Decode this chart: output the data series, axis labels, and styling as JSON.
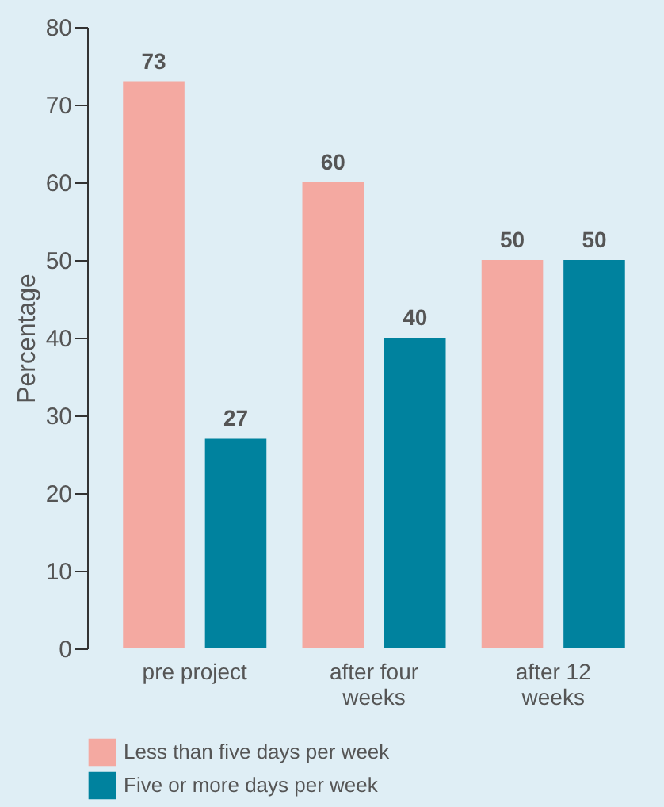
{
  "chart_data": {
    "type": "bar",
    "ylabel": "Percentage",
    "categories": [
      "pre project",
      "after four weeks",
      "after 12 weeks"
    ],
    "series": [
      {
        "name": "Less than five days per week",
        "color": "#f4a9a1",
        "values": [
          73,
          60,
          50
        ]
      },
      {
        "name": "Five or more days per week",
        "color": "#00829e",
        "values": [
          27,
          40,
          50
        ]
      }
    ],
    "ylim": [
      0,
      80
    ],
    "yticks": [
      0,
      10,
      20,
      30,
      40,
      50,
      60,
      70,
      80
    ],
    "grid": false,
    "legend": "bottom",
    "data_labels": true
  }
}
